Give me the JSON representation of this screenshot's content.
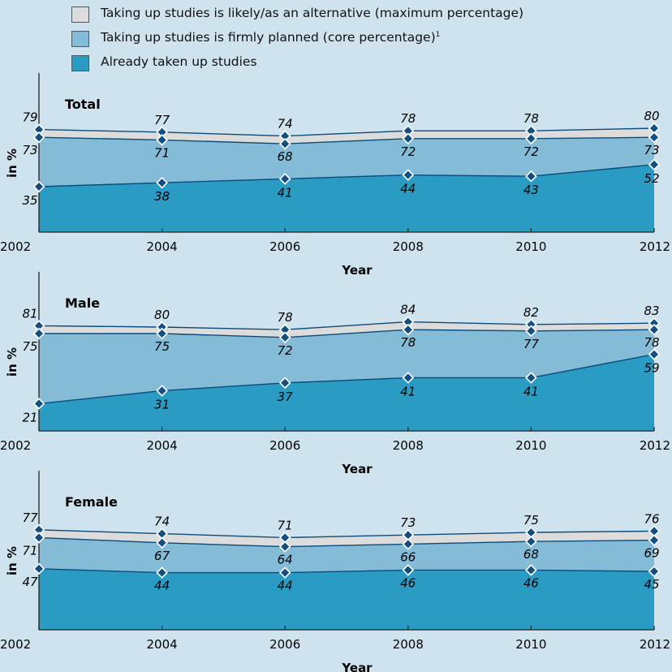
{
  "legend": [
    {
      "label": "Taking up studies is likely/as an alternative (maximum percentage)",
      "sup": "",
      "color": "#dcdcdc"
    },
    {
      "label": "Taking up studies is firmly planned (core percentage)",
      "sup": "1",
      "color": "#84bcd8"
    },
    {
      "label": "Already taken up studies",
      "sup": "",
      "color": "#2a9cc4"
    }
  ],
  "colors": {
    "background": "#cfe3ee",
    "maximum": "#dcdcdc",
    "core": "#84bcd8",
    "already": "#2a9cc4",
    "line": "#0c4a78",
    "marker": "#124f80",
    "axis": "#222222"
  },
  "chart_data": [
    {
      "type": "area",
      "title": "Total",
      "xlabel": "Year",
      "ylabel": "in %",
      "x": [
        2002,
        2004,
        2006,
        2008,
        2010,
        2012
      ],
      "series": [
        {
          "name": "Taking up studies is likely/as an alternative (maximum percentage)",
          "values": [
            79,
            77,
            74,
            78,
            78,
            80
          ]
        },
        {
          "name": "Taking up studies is firmly planned (core percentage)",
          "values": [
            73,
            71,
            68,
            72,
            72,
            73
          ]
        },
        {
          "name": "Already taken up studies",
          "values": [
            35,
            38,
            41,
            44,
            43,
            52
          ]
        }
      ]
    },
    {
      "type": "area",
      "title": "Male",
      "xlabel": "Year",
      "ylabel": "in %",
      "x": [
        2002,
        2004,
        2006,
        2008,
        2010,
        2012
      ],
      "series": [
        {
          "name": "Taking up studies is likely/as an alternative (maximum percentage)",
          "values": [
            81,
            80,
            78,
            84,
            82,
            83
          ]
        },
        {
          "name": "Taking up studies is firmly planned (core percentage)",
          "values": [
            75,
            75,
            72,
            78,
            77,
            78
          ]
        },
        {
          "name": "Already taken up studies",
          "values": [
            21,
            31,
            37,
            41,
            41,
            59
          ]
        }
      ]
    },
    {
      "type": "area",
      "title": "Female",
      "xlabel": "Year",
      "ylabel": "in %",
      "x": [
        2002,
        2004,
        2006,
        2008,
        2010,
        2012
      ],
      "series": [
        {
          "name": "Taking up studies is likely/as an alternative (maximum percentage)",
          "values": [
            77,
            74,
            71,
            73,
            75,
            76
          ]
        },
        {
          "name": "Taking up studies is firmly planned (core percentage)",
          "values": [
            71,
            67,
            64,
            66,
            68,
            69
          ]
        },
        {
          "name": "Already taken up studies",
          "values": [
            47,
            44,
            44,
            46,
            46,
            45
          ]
        }
      ]
    }
  ]
}
